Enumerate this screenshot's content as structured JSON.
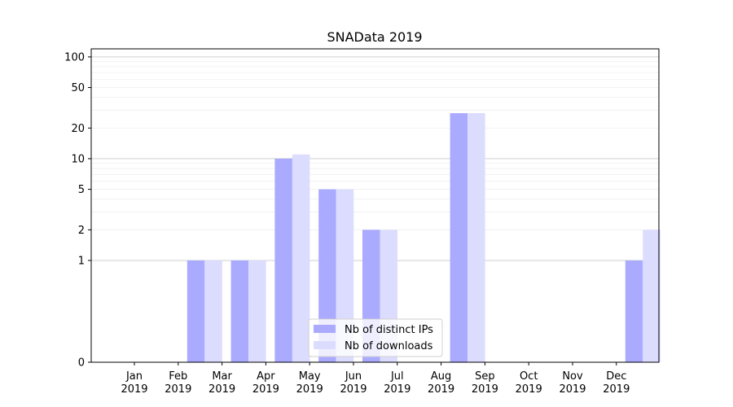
{
  "chart_data": {
    "type": "bar",
    "title": "SNAData 2019",
    "xlabel": "",
    "ylabel": "",
    "scale_y": "symlog",
    "ylim": [
      0,
      120
    ],
    "yticks": [
      0,
      1,
      2,
      5,
      10,
      20,
      50,
      100
    ],
    "grid": true,
    "legend_position": "bottom-center",
    "categories": [
      "Jan\n2019",
      "Feb\n2019",
      "Mar\n2019",
      "Apr\n2019",
      "May\n2019",
      "Jun\n2019",
      "Jul\n2019",
      "Aug\n2019",
      "Sep\n2019",
      "Oct\n2019",
      "Nov\n2019",
      "Dec\n2019"
    ],
    "series": [
      {
        "name": "Nb of distinct IPs",
        "color": "#aaaaff",
        "values": [
          0,
          1,
          1,
          10,
          5,
          2,
          0,
          28,
          0,
          0,
          0,
          1
        ]
      },
      {
        "name": "Nb of downloads",
        "color": "#dcdcff",
        "values": [
          0,
          1,
          1,
          11,
          5,
          2,
          0,
          28,
          0,
          0,
          0,
          2
        ]
      }
    ]
  }
}
